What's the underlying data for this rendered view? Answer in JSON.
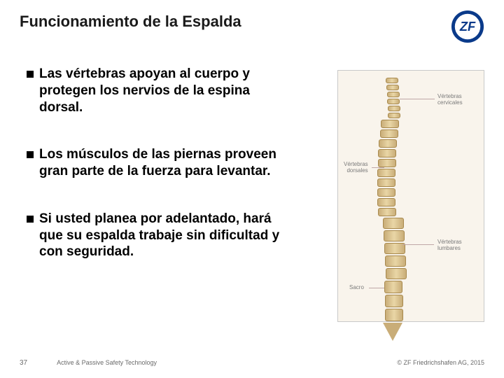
{
  "title": "Funcionamiento de la Espalda",
  "bullets": [
    "Las vértebras apoyan al cuerpo y protegen los nervios de la espina dorsal.",
    "Los músculos de las piernas proveen gran parte de la fuerza para levantar.",
    "Si usted planea por adelantado, hará que su espalda trabaje sin dificultad y con seguridad."
  ],
  "diagram": {
    "labels": {
      "cervical": "Vértebras\ncervicales",
      "dorsal": "Vértebras\ndorsales",
      "lumbar": "Vértebras\nlumbares",
      "sacro": "Sacro"
    },
    "colors": {
      "bg": "#f9f4ec",
      "border": "#c9c9c9",
      "bone_light": "#e9d6a6",
      "bone_dark": "#c9ad78",
      "bone_edge": "#a8894d",
      "label_text": "#7a7a7a",
      "leader": "#bfa7a7"
    },
    "vert_count": 24
  },
  "logo": {
    "ring_color": "#0a3a8a",
    "inner_bg": "#ffffff",
    "text": "ZF"
  },
  "footer": {
    "page": "37",
    "center": "Active & Passive Safety Technology",
    "right": "© ZF Friedrichshafen AG, 2015"
  }
}
